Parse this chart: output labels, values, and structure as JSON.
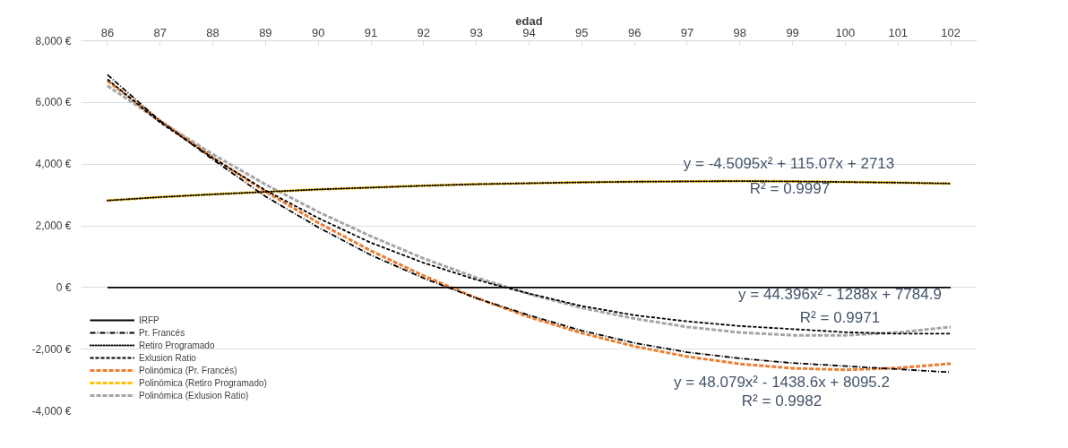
{
  "chart_data": {
    "type": "line",
    "xlabel": "edad",
    "x": [
      86,
      87,
      88,
      89,
      90,
      91,
      92,
      93,
      94,
      95,
      96,
      97,
      98,
      99,
      100,
      101,
      102
    ],
    "xlim": [
      85.5,
      102.5
    ],
    "xticks": [
      86,
      87,
      88,
      89,
      90,
      91,
      92,
      93,
      94,
      95,
      96,
      97,
      98,
      99,
      100,
      101,
      102
    ],
    "ylim": [
      -4000,
      8000
    ],
    "yticks": [
      {
        "value": -4000,
        "label": "-4,000 €"
      },
      {
        "value": -2000,
        "label": "-2,000 €"
      },
      {
        "value": 0,
        "label": "0 €"
      },
      {
        "value": 2000,
        "label": "2,000 €"
      },
      {
        "value": 4000,
        "label": "4,000 €"
      },
      {
        "value": 6000,
        "label": "6,000 €"
      },
      {
        "value": 8000,
        "label": "8,000 €"
      }
    ],
    "grid": "y",
    "legend": "bottom left",
    "marker": "none",
    "series": [
      {
        "name": "IRFP",
        "color": "#000000",
        "line_style": "solid",
        "values": [
          0,
          0,
          0,
          0,
          0,
          0,
          0,
          0,
          0,
          0,
          0,
          0,
          0,
          0,
          0,
          0,
          0
        ]
      },
      {
        "name": "Pr. Francés",
        "color": "#000000",
        "line_style": "dashdot",
        "values": [
          6900,
          5400,
          4150,
          2950,
          1950,
          1050,
          300,
          -350,
          -900,
          -1400,
          -1800,
          -2100,
          -2300,
          -2450,
          -2550,
          -2650,
          -2750
        ]
      },
      {
        "name": "Retiro Programado",
        "color": "#000000",
        "line_style": "dotted",
        "values": [
          2820,
          2930,
          3020,
          3100,
          3180,
          3240,
          3300,
          3350,
          3380,
          3410,
          3430,
          3440,
          3450,
          3440,
          3420,
          3400,
          3370
        ]
      },
      {
        "name": "Exlusion Ratio",
        "color": "#000000",
        "line_style": "dashed",
        "values": [
          6750,
          5350,
          4200,
          3150,
          2250,
          1450,
          800,
          250,
          -200,
          -600,
          -900,
          -1100,
          -1250,
          -1350,
          -1450,
          -1500,
          -1500
        ]
      },
      {
        "name": "Polinómica (Pr. Francés)",
        "color": "#ed7d31",
        "line_style": "dashed",
        "values": [
          6700,
          5410,
          4210,
          3110,
          2100,
          1190,
          380,
          -340,
          -960,
          -1480,
          -1910,
          -2240,
          -2480,
          -2620,
          -2670,
          -2610,
          -2470
        ]
      },
      {
        "name": "Polinómica (Retiro Programado)",
        "color": "#ffc000",
        "line_style": "dashed",
        "values": [
          2820,
          2930,
          3020,
          3100,
          3180,
          3240,
          3300,
          3350,
          3380,
          3410,
          3430,
          3440,
          3450,
          3440,
          3420,
          3400,
          3370
        ]
      },
      {
        "name": "Polinómica (Exlusion Ratio)",
        "color": "#a5a5a5",
        "line_style": "dashed",
        "values": [
          6540,
          5390,
          4320,
          3340,
          2450,
          1660,
          940,
          320,
          -210,
          -660,
          -1010,
          -1280,
          -1460,
          -1550,
          -1550,
          -1460,
          -1280
        ]
      }
    ],
    "annotations": [
      "y = -4.5095x² + 115.07x + 2713",
      "R² = 0.9997",
      "y = 44.396x² - 1288x + 7784.9",
      "R² = 0.9971",
      "y = 48.079x² - 1438.6x + 8095.2",
      "R² = 0.9982"
    ]
  }
}
